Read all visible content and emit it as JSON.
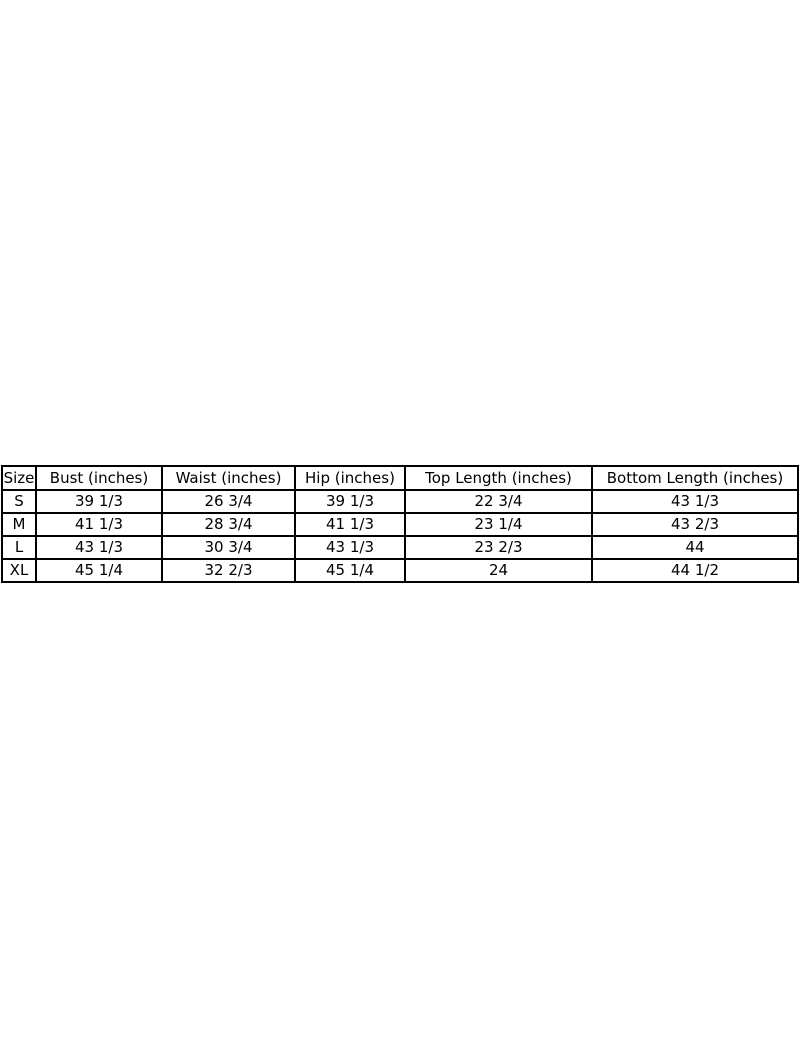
{
  "page": {
    "background": "#ffffff"
  },
  "chart_data": {
    "type": "table",
    "columns": [
      "Size",
      "Bust (inches)",
      "Waist (inches)",
      "Hip (inches)",
      "Top Length (inches)",
      "Bottom Length (inches)"
    ],
    "rows": [
      [
        "S",
        "39 1/3",
        "26 3/4",
        "39 1/3",
        "22 3/4",
        "43 1/3"
      ],
      [
        "M",
        "41 1/3",
        "28 3/4",
        "41 1/3",
        "23 1/4",
        "43 2/3"
      ],
      [
        "L",
        "43 1/3",
        "30 3/4",
        "43 1/3",
        "23 2/3",
        "44"
      ],
      [
        "XL",
        "45 1/4",
        "32 2/3",
        "45 1/4",
        "24",
        "44 1/2"
      ]
    ],
    "colors": {
      "border": "#000000",
      "text": "#000000",
      "background": "#ffffff"
    }
  }
}
